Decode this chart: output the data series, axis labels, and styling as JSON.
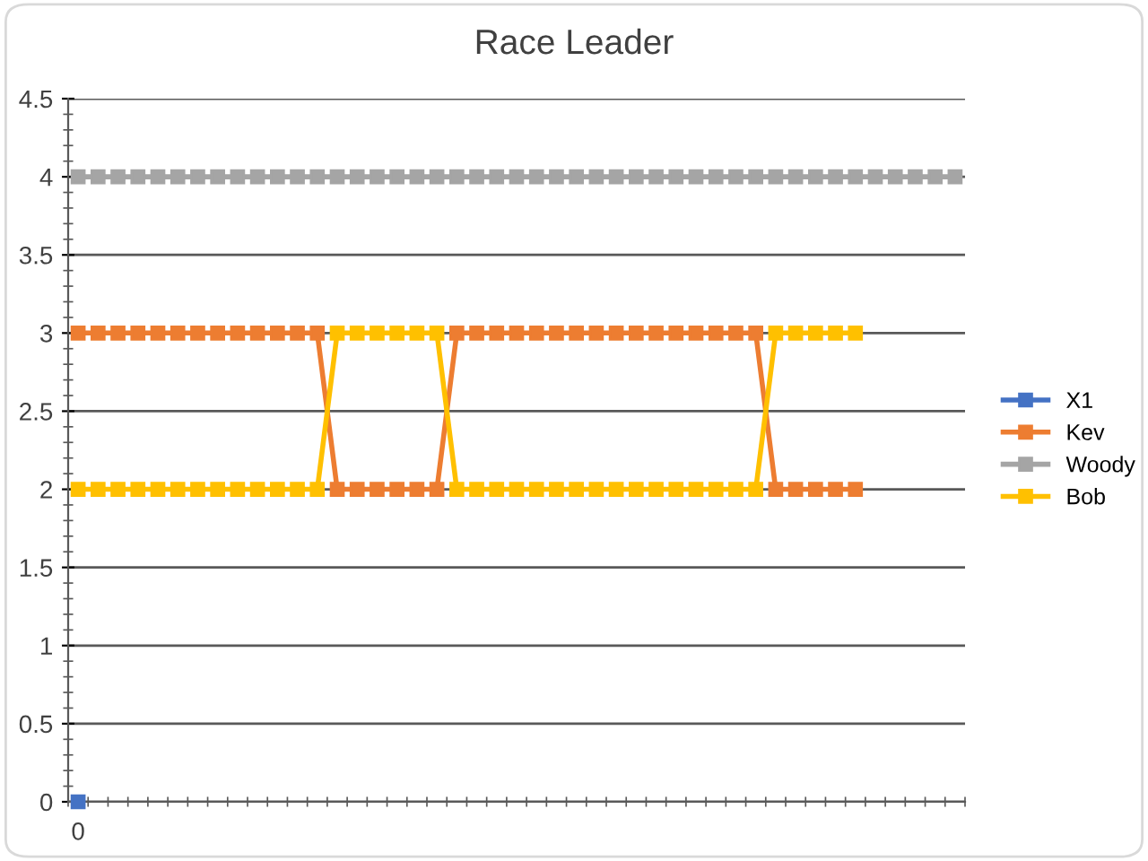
{
  "chart_data": {
    "type": "line",
    "title": "Race Leader",
    "categories": [
      "0",
      null,
      null,
      null,
      null,
      null,
      null,
      null,
      null,
      null,
      null,
      null,
      null,
      null,
      null,
      null,
      null,
      null,
      null,
      null,
      null,
      null,
      null,
      null,
      null,
      null,
      null,
      null,
      null,
      null,
      null,
      null,
      null,
      null,
      null,
      null,
      null,
      null,
      null,
      null,
      null,
      null,
      null,
      null,
      null
    ],
    "series": [
      {
        "name": "X1",
        "color": "#4472c4",
        "values": [
          0,
          null,
          null,
          null,
          null,
          null,
          null,
          null,
          null,
          null,
          null,
          null,
          null,
          null,
          null,
          null,
          null,
          null,
          null,
          null,
          null,
          null,
          null,
          null,
          null,
          null,
          null,
          null,
          null,
          null,
          null,
          null,
          null,
          null,
          null,
          null,
          null,
          null,
          null,
          null,
          null,
          null,
          null,
          null,
          null
        ]
      },
      {
        "name": "Kev",
        "color": "#ed7d31",
        "values": [
          3,
          3,
          3,
          3,
          3,
          3,
          3,
          3,
          3,
          3,
          3,
          3,
          3,
          2,
          2,
          2,
          2,
          2,
          2,
          3,
          3,
          3,
          3,
          3,
          3,
          3,
          3,
          3,
          3,
          3,
          3,
          3,
          3,
          3,
          3,
          2,
          2,
          2,
          2,
          2,
          null,
          null,
          null,
          null,
          null
        ]
      },
      {
        "name": "Woody",
        "color": "#a5a5a5",
        "values": [
          4,
          4,
          4,
          4,
          4,
          4,
          4,
          4,
          4,
          4,
          4,
          4,
          4,
          4,
          4,
          4,
          4,
          4,
          4,
          4,
          4,
          4,
          4,
          4,
          4,
          4,
          4,
          4,
          4,
          4,
          4,
          4,
          4,
          4,
          4,
          4,
          4,
          4,
          4,
          4,
          4,
          4,
          4,
          4,
          4
        ]
      },
      {
        "name": "Bob",
        "color": "#ffc000",
        "values": [
          2,
          2,
          2,
          2,
          2,
          2,
          2,
          2,
          2,
          2,
          2,
          2,
          2,
          3,
          3,
          3,
          3,
          3,
          3,
          2,
          2,
          2,
          2,
          2,
          2,
          2,
          2,
          2,
          2,
          2,
          2,
          2,
          2,
          2,
          2,
          3,
          3,
          3,
          3,
          3,
          null,
          null,
          null,
          null,
          null
        ]
      }
    ],
    "ylim": [
      0,
      4.5
    ],
    "yticks": [
      0,
      0.5,
      1,
      1.5,
      2,
      2.5,
      3,
      3.5,
      4,
      4.5
    ],
    "grid": "y",
    "legend": "right",
    "marker": "square",
    "line_style": "solid"
  }
}
